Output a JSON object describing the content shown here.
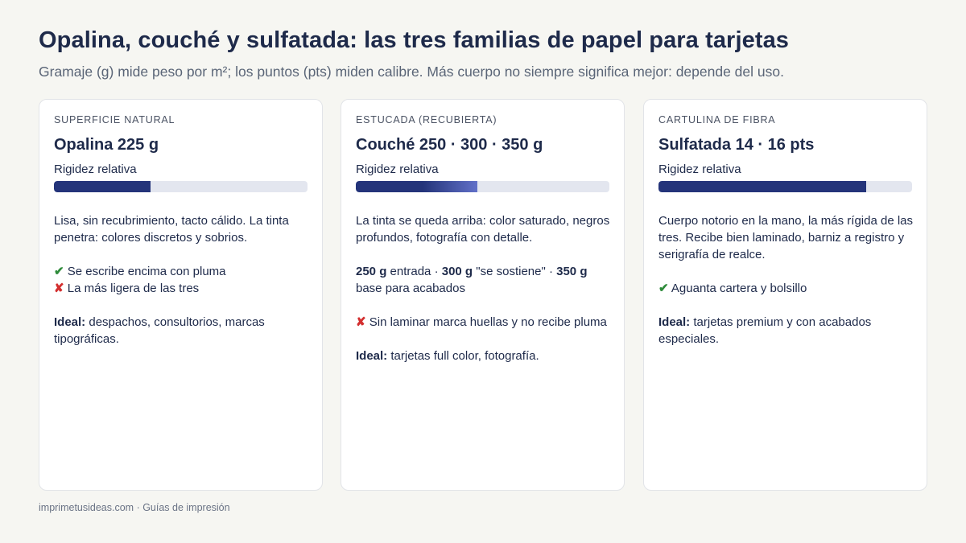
{
  "header": {
    "title": "Opalina, couché y sulfatada: las tres familias de papel para tarjetas",
    "subtitle": "Gramaje (g) mide peso por m²; los puntos (pts) miden calibre. Más cuerpo no siempre significa mejor: depende del uso."
  },
  "cards": [
    {
      "eyebrow": "SUPERFICIE NATURAL",
      "name": "Opalina 225 g",
      "rigidity_label": "Rigidez relativa",
      "rigidity_fraction": 0.38,
      "description": "Lisa, sin recubrimiento, tacto cálido. La tinta penetra: colores discretos y sobrios.",
      "pro_icon": "✔",
      "pro": "Se escribe encima con pluma",
      "con_icon": "✘",
      "con": "La más ligera de las tres",
      "ideal_label": "Ideal:",
      "ideal": "despachos, consultorios, marcas tipográficas."
    },
    {
      "eyebrow": "ESTUCADA (RECUBIERTA)",
      "name": "Couché 250 · 300 · 350 g",
      "rigidity_label": "Rigidez relativa",
      "rigidity_fraction": 0.48,
      "description": "La tinta se queda arriba: color saturado, negros profundos, fotografía con detalle.",
      "weights": {
        "w1": "250 g",
        "t1": " entrada · ",
        "w2": "300 g",
        "t2": " \"se sostiene\" · ",
        "w3": "350 g",
        "t3": " base para acabados"
      },
      "con_icon": "✘",
      "con": "Sin laminar marca huellas y no recibe pluma",
      "ideal_label": "Ideal:",
      "ideal": "tarjetas full color, fotografía."
    },
    {
      "eyebrow": "CARTULINA DE FIBRA",
      "name": "Sulfatada 14 · 16 pts",
      "rigidity_label": "Rigidez relativa",
      "rigidity_fraction": 0.82,
      "description": "Cuerpo notorio en la mano, la más rígida de las tres. Recibe bien laminado, barniz a registro y serigrafía de realce.",
      "pro_icon": "✔",
      "pro": "Aguanta cartera y bolsillo",
      "ideal_label": "Ideal:",
      "ideal": "tarjetas premium y con acabados especiales."
    }
  ],
  "footer": {
    "text": "imprimetusideas.com · Guías de impresión"
  }
}
